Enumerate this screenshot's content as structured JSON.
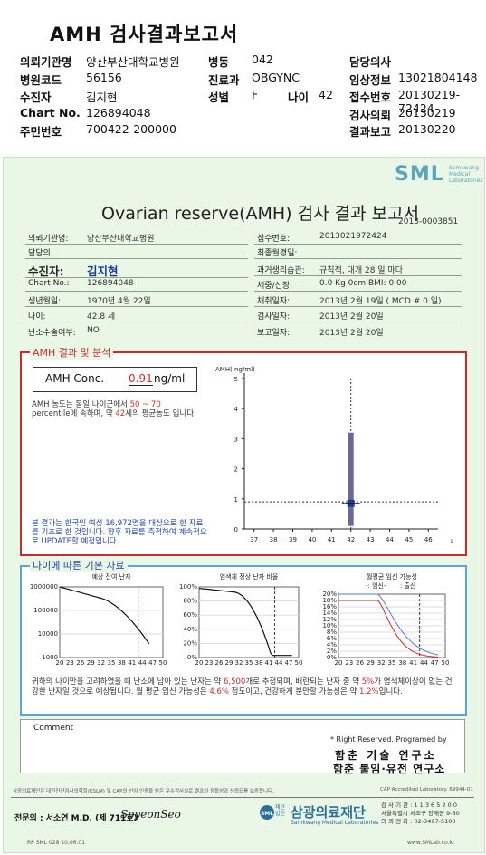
{
  "header": {
    "title": "AMH 검사결과보고서",
    "rows": [
      {
        "l1": "의뢰기관명",
        "v1": "양산부산대학교병원",
        "l2": "병동",
        "v2": "042",
        "l3": "담당의사",
        "v3": ""
      },
      {
        "l1": "병원코드",
        "v1": "56156",
        "l2": "진료과",
        "v2": "OBGYNC",
        "l3": "임상정보",
        "v3": "13021804148"
      },
      {
        "l1": "수진자",
        "v1": "김지현",
        "l2": "성별",
        "v2": "F",
        "l2b": "나이",
        "v2b": "42",
        "l3": "접수번호",
        "v3": "20130219-72424"
      },
      {
        "l1": "Chart No.",
        "v1": "126894048",
        "l2": "",
        "v2": "",
        "l3": "검사의뢰",
        "v3": "20130219"
      },
      {
        "l1": "주민번호",
        "v1": "700422-200000",
        "l2": "",
        "v2": "",
        "l3": "결과보고",
        "v3": "20130220"
      }
    ]
  },
  "logo": {
    "text": "SML",
    "sub": "Samkwang Medical Laboratories"
  },
  "report": {
    "title": "Ovarian reserve(AMH) 검사 결과 보고서",
    "doc_no": "2013-0003851",
    "left_fields": [
      {
        "label": "의뢰기관명:",
        "value": "양산부산대학교병원"
      },
      {
        "label": "담당의:",
        "value": ""
      },
      {
        "label": "수진자:",
        "value": "김지현"
      },
      {
        "label": "Chart No.:",
        "value": "126894048"
      },
      {
        "label": "생년월일:",
        "value": "1970년 4월 22일"
      },
      {
        "label": "나이:",
        "value": "42.8 세"
      },
      {
        "label": "난소수술여부:",
        "value": "NO"
      }
    ],
    "right_fields": [
      {
        "label": "접수번호:",
        "value": "2013021972424"
      },
      {
        "label": "최종월경일:",
        "value": ""
      },
      {
        "label": "과거생리습관:",
        "value": "규칙적,  대개    28 일 마다"
      },
      {
        "label": "체중/신장:",
        "value": "0.0 Kg        0cm    BMI:     0.00"
      },
      {
        "label": "채취일자:",
        "value": "2013년 2월 19일   ( MCD #   0 일)"
      },
      {
        "label": "검사일자:",
        "value": "2013년  2월 20일"
      },
      {
        "label": "보고일자:",
        "value": "2013년  2월 20일"
      }
    ]
  },
  "amh_section": {
    "title": "AMH 결과 및 분석",
    "conc_label": "AMH Conc.",
    "conc_value": "0.91",
    "conc_unit": "ng/ml",
    "desc_a": "AMH 농도는 동일 나이군에서  ",
    "desc_pct_low": "50",
    "desc_tilde": " ~  ",
    "desc_pct_high": "70",
    "desc_b": "percentile에 속하며, 약  ",
    "desc_age": "42",
    "desc_c": "세의 평균농도 입니다.",
    "note": "본 결과는 한국인 여성 16,972명을 대상으로 한 자료를 기초로 한 것입니다. 향후 자료를 축적하여 계속적으로 UPDATE할 예정입니다."
  },
  "chart_data": [
    {
      "type": "scatter",
      "title": "AMH( ng/ml)",
      "xlabel": "나이",
      "x_ticks": [
        37,
        38,
        39,
        40,
        41,
        42,
        43,
        44,
        45,
        46
      ],
      "y_ticks": [
        0,
        1,
        2,
        3,
        4,
        5
      ],
      "ylim": [
        0,
        5
      ],
      "xlim": [
        36.5,
        46.5
      ],
      "range_bar": {
        "x": 42,
        "low": 0.1,
        "high": 3.2
      },
      "point": {
        "x": 42,
        "y": 0.85
      },
      "reference_line_y": 0.9,
      "vertical_line_x": 42
    },
    {
      "type": "line",
      "title": "예상 잔여 난자",
      "y_ticks": [
        "1000000",
        "100000",
        "10000",
        "1000"
      ],
      "x_ticks": [
        20,
        23,
        26,
        29,
        32,
        35,
        38,
        41,
        44,
        47,
        50
      ],
      "scale": "log",
      "marker_x": 42.8
    },
    {
      "type": "line",
      "title": "염색체 정상 난자 비율",
      "y_ticks": [
        "100%",
        "80%",
        "60%",
        "40%",
        "20%",
        "0%"
      ],
      "x_ticks": [
        20,
        23,
        26,
        29,
        32,
        35,
        38,
        41,
        44,
        47,
        50
      ],
      "marker_x": 42.8
    },
    {
      "type": "line",
      "title": "월평균 임신 가능성",
      "legend": [
        "-: 임신-",
        ": 출산"
      ],
      "legend_colors": [
        "#5a7ad6",
        "#cc2b2b"
      ],
      "y_ticks": [
        "20%",
        "18%",
        "16%",
        "14%",
        "12%",
        "10%",
        "8%",
        "6%",
        "4%",
        "2%",
        "0%"
      ],
      "x_ticks": [
        20,
        23,
        26,
        29,
        32,
        35,
        38,
        41,
        44,
        47,
        50
      ],
      "marker_x": 42.8
    }
  ],
  "age_section": {
    "title": "나이에 따른 기본 자료",
    "conclusion_a": "귀하의 나이만을 고려하였을 때 난소에 남아 있는 난자는 약    ",
    "eggs": "6,500",
    "conclusion_b": "개로 추정되며, 배란되는 난자 중 약    ",
    "normal_pct": "5%",
    "conclusion_c": "가 염색체이상이 없는 건강한 난자일 것으로 예상됩니다. 월 평균 임신 가능성은 ",
    "preg_pct": "4.6%",
    "conclusion_d": " 정도이고, 건강하게 분만할 가능성은 약  ",
    "birth_pct": "1.2%",
    "conclusion_e": "입니다."
  },
  "comment": {
    "label": "Comment",
    "value": ""
  },
  "footer": {
    "rights": "* Right Reserved. Programed by",
    "lab_line1": "함춘 기술 연구소",
    "lab_line2": "함춘 불임·유전 연구소",
    "fine_print": "삼광의료재단은 대한진단검사의학회(KSLM) 및 CAP의 신임 인증을 받은 우수검사실로 결과의 정확성과 신뢰도를 보증합니다.",
    "cap": "CAP  Accredited  Laboratory.   69944-01",
    "specialist": "전문의 : 서소연 M.D. (제 711호)",
    "signature": "SoyeonSeo",
    "org_prefix": "재단법인",
    "org_name": "삼광의료재단",
    "org_en": "Samkwang Medical Laboratories",
    "address": [
      "검 사 기 관 : 1 1 3 6 5 2 0 0",
      "서울특별시 서초구 양재동 9-60",
      "의 뢰 전 화 : 02-3497-5100"
    ],
    "form_code": "RP  SML  028  10.06.01",
    "website": "www.SMLab.co.kr"
  }
}
